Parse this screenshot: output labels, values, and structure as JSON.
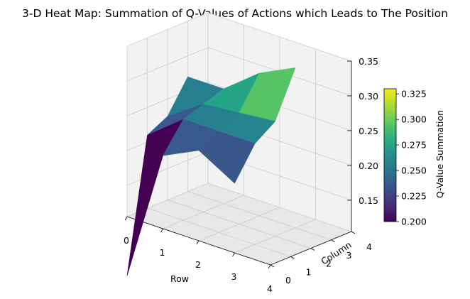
{
  "chart_data": {
    "type": "surface3d",
    "title": "3-D Heat Map: Summation of Q-Values of Actions which Leads to The Position",
    "xlabel": "Row",
    "ylabel": "Column",
    "zlabel": "",
    "x_ticks": [
      "0",
      "1",
      "2",
      "3",
      "4"
    ],
    "y_ticks": [
      "0",
      "1",
      "2",
      "3",
      "4"
    ],
    "z_ticks": [
      "0.15",
      "0.20",
      "0.25",
      "0.30",
      "0.35"
    ],
    "xlim": [
      0,
      4
    ],
    "ylim": [
      0,
      4
    ],
    "zlim": [
      0.105,
      0.35
    ],
    "rows": [
      0,
      1,
      2,
      3
    ],
    "columns": [
      0,
      1,
      2,
      3
    ],
    "z": [
      [
        0.02,
        0.21,
        0.225,
        0.27
      ],
      [
        0.21,
        0.25,
        0.26,
        0.27
      ],
      [
        0.235,
        0.25,
        0.265,
        0.31
      ],
      [
        0.205,
        0.25,
        0.27,
        0.335
      ]
    ],
    "colorbar": {
      "label": "Q-Value Summation",
      "range": [
        0.2,
        0.33
      ],
      "ticks": [
        "0.200",
        "0.225",
        "0.250",
        "0.275",
        "0.300",
        "0.325"
      ],
      "colormap": "viridis"
    },
    "grid": true,
    "colors": {
      "pane": "#f2f2f2",
      "pane_floor": "#e8e8e8",
      "grid": "#cccccc",
      "edge": "#3a3a3a"
    }
  }
}
